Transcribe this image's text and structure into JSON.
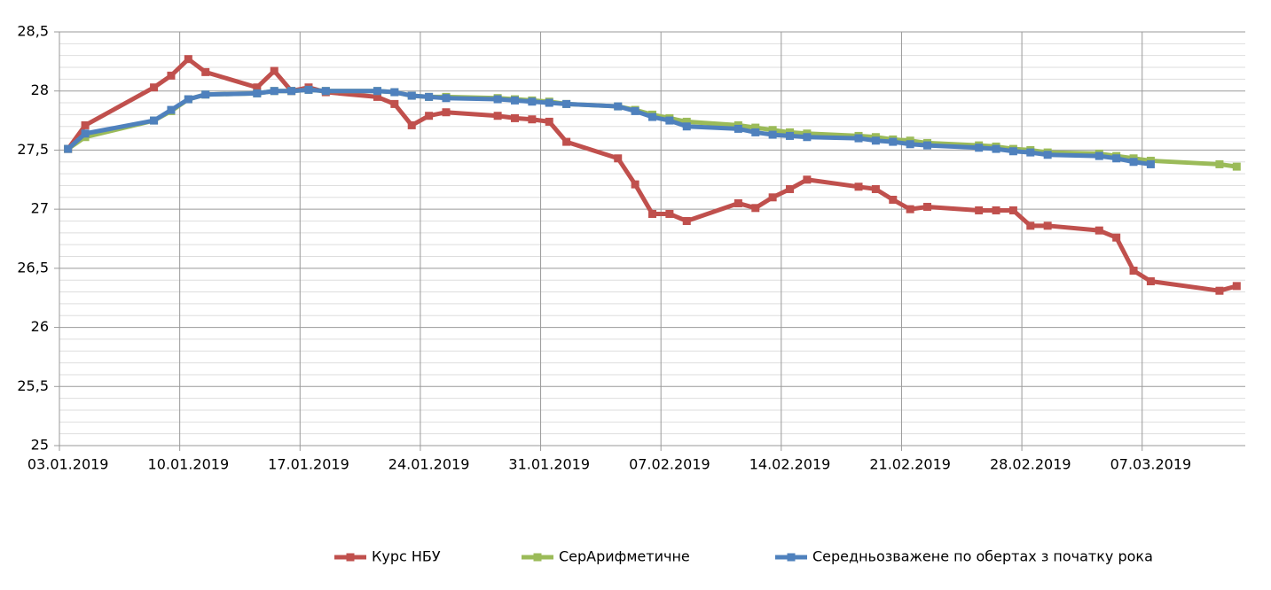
{
  "chart_data": {
    "type": "line",
    "x": [
      "03.01.2019",
      "04.01.2019",
      "08.01.2019",
      "09.01.2019",
      "10.01.2019",
      "11.01.2019",
      "14.01.2019",
      "15.01.2019",
      "16.01.2019",
      "17.01.2019",
      "18.01.2019",
      "21.01.2019",
      "22.01.2019",
      "23.01.2019",
      "24.01.2019",
      "25.01.2019",
      "28.01.2019",
      "29.01.2019",
      "30.01.2019",
      "31.01.2019",
      "01.02.2019",
      "04.02.2019",
      "05.02.2019",
      "06.02.2019",
      "07.02.2019",
      "08.02.2019",
      "11.02.2019",
      "12.02.2019",
      "13.02.2019",
      "14.02.2019",
      "15.02.2019",
      "18.02.2019",
      "19.02.2019",
      "20.02.2019",
      "21.02.2019",
      "22.02.2019",
      "25.02.2019",
      "26.02.2019",
      "27.02.2019",
      "28.02.2019",
      "01.03.2019",
      "04.03.2019",
      "05.03.2019",
      "06.03.2019",
      "07.03.2019",
      "11.03.2019",
      "12.03.2019"
    ],
    "series": [
      {
        "name": "Курс НБУ",
        "color": "#c0504d",
        "values": [
          27.51,
          27.71,
          28.03,
          28.13,
          28.27,
          28.16,
          28.03,
          28.17,
          28.0,
          28.03,
          27.99,
          27.95,
          27.89,
          27.71,
          27.79,
          27.82,
          27.79,
          27.77,
          27.76,
          27.74,
          27.57,
          27.43,
          27.21,
          26.96,
          26.96,
          26.9,
          27.05,
          27.01,
          27.1,
          27.17,
          27.25,
          27.19,
          27.17,
          27.08,
          27.0,
          27.02,
          26.99,
          26.99,
          26.99,
          26.86,
          26.86,
          26.82,
          26.76,
          26.48,
          26.39,
          26.31,
          26.35
        ]
      },
      {
        "name": "СерАрифметичне",
        "color": "#9bbb59",
        "values": [
          27.51,
          27.61,
          27.75,
          27.83,
          27.93,
          27.97,
          27.98,
          28.0,
          28.0,
          28.01,
          28.0,
          28.0,
          27.99,
          27.96,
          27.95,
          27.95,
          27.94,
          27.93,
          27.92,
          27.91,
          27.89,
          27.87,
          27.84,
          27.8,
          27.77,
          27.74,
          27.71,
          27.69,
          27.67,
          27.65,
          27.64,
          27.62,
          27.61,
          27.59,
          27.58,
          27.56,
          27.54,
          27.53,
          27.51,
          27.5,
          27.48,
          27.47,
          27.45,
          27.43,
          27.41,
          27.38,
          27.36
        ]
      },
      {
        "name": "Середньозважене по обертах з початку рока",
        "color": "#4f81bd",
        "values": [
          27.51,
          27.64,
          27.75,
          27.84,
          27.93,
          27.97,
          27.98,
          28.0,
          28.0,
          28.01,
          28.0,
          28.0,
          27.99,
          27.96,
          27.95,
          27.94,
          27.93,
          27.92,
          27.91,
          27.9,
          27.89,
          27.87,
          27.83,
          27.78,
          27.75,
          27.7,
          27.68,
          27.65,
          27.63,
          27.62,
          27.61,
          27.6,
          27.58,
          27.57,
          27.55,
          27.54,
          27.52,
          27.51,
          27.49,
          27.48,
          27.46,
          27.45,
          27.43,
          27.4,
          27.38,
          null,
          null
        ]
      }
    ],
    "xlim": [
      "03.01.2019",
      "12.03.2019"
    ],
    "xticks": [
      "03.01.2019",
      "10.01.2019",
      "17.01.2019",
      "24.01.2019",
      "31.01.2019",
      "07.02.2019",
      "14.02.2019",
      "21.02.2019",
      "28.02.2019",
      "07.03.2019"
    ],
    "ylim": [
      25,
      28.5
    ],
    "yticks": [
      25,
      {
        "value": 25.5,
        "label": "25,5"
      },
      26,
      {
        "value": 26.5,
        "label": "26,5"
      },
      27,
      {
        "value": 27.5,
        "label": "27,5"
      },
      28,
      {
        "value": 28.5,
        "label": "28,5"
      }
    ],
    "grid": true,
    "minor_grid": true,
    "legend": "bottom"
  }
}
